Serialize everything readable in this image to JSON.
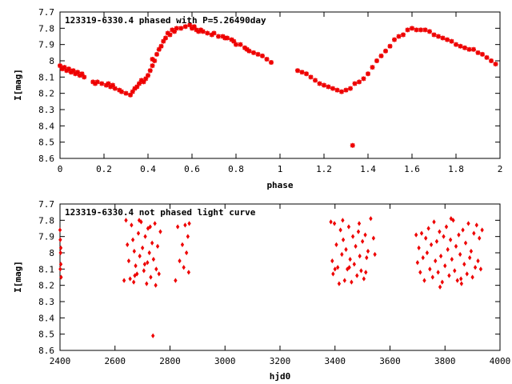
{
  "colors": {
    "points": "#ee0000",
    "axes": "#000000",
    "background": "#ffffff"
  },
  "chart_data": [
    {
      "type": "scatter",
      "title": "123319-6330.4 phased with P=5.26490day",
      "xlabel": "phase",
      "ylabel": "I[mag]",
      "xlim": [
        0,
        2
      ],
      "ylim": [
        7.7,
        8.6
      ],
      "y_inverted": true,
      "grid": false,
      "marker": "star",
      "xticks": [
        "0",
        "0.2",
        "0.4",
        "0.6",
        "0.8",
        "1",
        "1.2",
        "1.4",
        "1.6",
        "1.8",
        "2"
      ],
      "yticks": [
        "7.7",
        "7.8",
        "7.9",
        "8",
        "8.1",
        "8.2",
        "8.3",
        "8.4",
        "8.5",
        "8.6"
      ],
      "points": [
        [
          0.0,
          8.03
        ],
        [
          0.01,
          8.05
        ],
        [
          0.02,
          8.04
        ],
        [
          0.03,
          8.06
        ],
        [
          0.04,
          8.05
        ],
        [
          0.05,
          8.07
        ],
        [
          0.06,
          8.06
        ],
        [
          0.07,
          8.08
        ],
        [
          0.08,
          8.07
        ],
        [
          0.09,
          8.09
        ],
        [
          0.1,
          8.08
        ],
        [
          0.11,
          8.1
        ],
        [
          0.15,
          8.13
        ],
        [
          0.16,
          8.14
        ],
        [
          0.17,
          8.13
        ],
        [
          0.19,
          8.14
        ],
        [
          0.21,
          8.15
        ],
        [
          0.22,
          8.14
        ],
        [
          0.23,
          8.16
        ],
        [
          0.24,
          8.15
        ],
        [
          0.25,
          8.17
        ],
        [
          0.27,
          8.18
        ],
        [
          0.28,
          8.19
        ],
        [
          0.3,
          8.2
        ],
        [
          0.32,
          8.21
        ],
        [
          0.33,
          8.19
        ],
        [
          0.34,
          8.17
        ],
        [
          0.35,
          8.16
        ],
        [
          0.36,
          8.14
        ],
        [
          0.37,
          8.12
        ],
        [
          0.38,
          8.13
        ],
        [
          0.39,
          8.11
        ],
        [
          0.4,
          8.09
        ],
        [
          0.41,
          8.06
        ],
        [
          0.42,
          8.03
        ],
        [
          0.42,
          7.99
        ],
        [
          0.43,
          8.0
        ],
        [
          0.44,
          7.96
        ],
        [
          0.45,
          7.93
        ],
        [
          0.46,
          7.91
        ],
        [
          0.47,
          7.88
        ],
        [
          0.48,
          7.86
        ],
        [
          0.49,
          7.83
        ],
        [
          0.5,
          7.84
        ],
        [
          0.51,
          7.81
        ],
        [
          0.52,
          7.82
        ],
        [
          0.53,
          7.8
        ],
        [
          0.55,
          7.8
        ],
        [
          0.57,
          7.79
        ],
        [
          0.59,
          7.78
        ],
        [
          0.6,
          7.8
        ],
        [
          0.61,
          7.79
        ],
        [
          0.62,
          7.81
        ],
        [
          0.63,
          7.82
        ],
        [
          0.64,
          7.81
        ],
        [
          0.65,
          7.82
        ],
        [
          0.67,
          7.83
        ],
        [
          0.69,
          7.84
        ],
        [
          0.7,
          7.83
        ],
        [
          0.72,
          7.85
        ],
        [
          0.74,
          7.85
        ],
        [
          0.75,
          7.86
        ],
        [
          0.76,
          7.86
        ],
        [
          0.78,
          7.87
        ],
        [
          0.79,
          7.88
        ],
        [
          0.8,
          7.9
        ],
        [
          0.82,
          7.9
        ],
        [
          0.84,
          7.92
        ],
        [
          0.85,
          7.93
        ],
        [
          0.86,
          7.94
        ],
        [
          0.88,
          7.95
        ],
        [
          0.9,
          7.96
        ],
        [
          0.92,
          7.97
        ],
        [
          0.94,
          7.99
        ],
        [
          0.96,
          8.01
        ],
        [
          1.08,
          8.06
        ],
        [
          1.1,
          8.07
        ],
        [
          1.12,
          8.08
        ],
        [
          1.14,
          8.1
        ],
        [
          1.16,
          8.12
        ],
        [
          1.18,
          8.14
        ],
        [
          1.2,
          8.15
        ],
        [
          1.22,
          8.16
        ],
        [
          1.24,
          8.17
        ],
        [
          1.26,
          8.18
        ],
        [
          1.28,
          8.19
        ],
        [
          1.3,
          8.18
        ],
        [
          1.32,
          8.17
        ],
        [
          1.34,
          8.14
        ],
        [
          1.36,
          8.13
        ],
        [
          1.38,
          8.11
        ],
        [
          1.4,
          8.08
        ],
        [
          1.42,
          8.04
        ],
        [
          1.44,
          8.0
        ],
        [
          1.46,
          7.97
        ],
        [
          1.48,
          7.94
        ],
        [
          1.5,
          7.91
        ],
        [
          1.52,
          7.87
        ],
        [
          1.54,
          7.85
        ],
        [
          1.56,
          7.84
        ],
        [
          1.58,
          7.81
        ],
        [
          1.6,
          7.8
        ],
        [
          1.62,
          7.81
        ],
        [
          1.64,
          7.81
        ],
        [
          1.66,
          7.81
        ],
        [
          1.68,
          7.82
        ],
        [
          1.7,
          7.84
        ],
        [
          1.72,
          7.85
        ],
        [
          1.74,
          7.86
        ],
        [
          1.76,
          7.87
        ],
        [
          1.78,
          7.88
        ],
        [
          1.8,
          7.9
        ],
        [
          1.82,
          7.91
        ],
        [
          1.84,
          7.92
        ],
        [
          1.86,
          7.93
        ],
        [
          1.88,
          7.93
        ],
        [
          1.9,
          7.95
        ],
        [
          1.92,
          7.96
        ],
        [
          1.94,
          7.98
        ],
        [
          1.96,
          8.0
        ],
        [
          1.98,
          8.02
        ],
        [
          1.33,
          8.52
        ]
      ]
    },
    {
      "type": "scatter",
      "title": "123319-6330.4 not phased light curve",
      "xlabel": "hjd0",
      "ylabel": "I[mag]",
      "xlim": [
        2400,
        4000
      ],
      "ylim": [
        7.7,
        8.6
      ],
      "y_inverted": true,
      "grid": false,
      "marker": "diamond",
      "xticks": [
        "2400",
        "2600",
        "2800",
        "3000",
        "3200",
        "3400",
        "3600",
        "3800",
        "4000"
      ],
      "yticks": [
        "7.7",
        "7.8",
        "7.9",
        "8",
        "8.1",
        "8.2",
        "8.3",
        "8.4",
        "8.5",
        "8.6"
      ],
      "points": [
        [
          2400,
          7.86
        ],
        [
          2401,
          7.92
        ],
        [
          2402,
          8.0
        ],
        [
          2403,
          8.07
        ],
        [
          2404,
          8.15
        ],
        [
          2401,
          8.1
        ],
        [
          2403,
          7.97
        ],
        [
          2633,
          8.17
        ],
        [
          2640,
          7.8
        ],
        [
          2645,
          7.95
        ],
        [
          2650,
          8.05
        ],
        [
          2655,
          8.16
        ],
        [
          2660,
          7.83
        ],
        [
          2665,
          7.92
        ],
        [
          2670,
          7.99
        ],
        [
          2675,
          8.08
        ],
        [
          2680,
          8.13
        ],
        [
          2685,
          7.88
        ],
        [
          2690,
          8.02
        ],
        [
          2695,
          7.81
        ],
        [
          2700,
          7.97
        ],
        [
          2705,
          8.11
        ],
        [
          2710,
          7.9
        ],
        [
          2715,
          8.19
        ],
        [
          2720,
          7.85
        ],
        [
          2725,
          8.0
        ],
        [
          2730,
          8.15
        ],
        [
          2735,
          7.94
        ],
        [
          2740,
          8.04
        ],
        [
          2745,
          7.82
        ],
        [
          2750,
          8.1
        ],
        [
          2755,
          7.96
        ],
        [
          2760,
          8.13
        ],
        [
          2765,
          7.87
        ],
        [
          2668,
          8.18
        ],
        [
          2688,
          7.8
        ],
        [
          2708,
          8.07
        ],
        [
          2728,
          7.84
        ],
        [
          2748,
          8.2
        ],
        [
          2738,
          8.51
        ],
        [
          2672,
          8.14
        ],
        [
          2718,
          8.06
        ],
        [
          2820,
          8.17
        ],
        [
          2828,
          7.84
        ],
        [
          2835,
          8.05
        ],
        [
          2845,
          7.95
        ],
        [
          2850,
          8.09
        ],
        [
          2855,
          7.83
        ],
        [
          2860,
          8.0
        ],
        [
          2865,
          7.9
        ],
        [
          2870,
          7.82
        ],
        [
          2868,
          8.12
        ],
        [
          3385,
          7.81
        ],
        [
          3390,
          8.05
        ],
        [
          3393,
          8.13
        ],
        [
          3398,
          7.82
        ],
        [
          3405,
          7.95
        ],
        [
          3410,
          8.09
        ],
        [
          3415,
          8.19
        ],
        [
          3420,
          7.86
        ],
        [
          3425,
          8.01
        ],
        [
          3430,
          7.92
        ],
        [
          3435,
          8.17
        ],
        [
          3440,
          7.98
        ],
        [
          3445,
          8.1
        ],
        [
          3450,
          7.84
        ],
        [
          3455,
          8.04
        ],
        [
          3460,
          8.18
        ],
        [
          3465,
          7.9
        ],
        [
          3470,
          8.07
        ],
        [
          3475,
          7.96
        ],
        [
          3480,
          8.14
        ],
        [
          3485,
          7.87
        ],
        [
          3490,
          8.02
        ],
        [
          3495,
          8.11
        ],
        [
          3500,
          7.93
        ],
        [
          3505,
          8.16
        ],
        [
          3510,
          7.89
        ],
        [
          3515,
          8.03
        ],
        [
          3520,
          7.99
        ],
        [
          3530,
          7.79
        ],
        [
          3540,
          7.91
        ],
        [
          3545,
          8.01
        ],
        [
          3400,
          8.1
        ],
        [
          3428,
          7.8
        ],
        [
          3452,
          8.09
        ],
        [
          3488,
          7.82
        ],
        [
          3512,
          8.12
        ],
        [
          3695,
          7.89
        ],
        [
          3700,
          8.06
        ],
        [
          3705,
          7.97
        ],
        [
          3710,
          8.12
        ],
        [
          3715,
          7.88
        ],
        [
          3720,
          8.03
        ],
        [
          3725,
          8.17
        ],
        [
          3730,
          7.91
        ],
        [
          3735,
          8.0
        ],
        [
          3740,
          7.85
        ],
        [
          3745,
          8.1
        ],
        [
          3750,
          7.95
        ],
        [
          3755,
          8.15
        ],
        [
          3760,
          7.81
        ],
        [
          3765,
          8.05
        ],
        [
          3770,
          7.93
        ],
        [
          3775,
          8.12
        ],
        [
          3780,
          7.87
        ],
        [
          3785,
          8.02
        ],
        [
          3790,
          8.18
        ],
        [
          3795,
          7.9
        ],
        [
          3800,
          8.08
        ],
        [
          3805,
          7.84
        ],
        [
          3810,
          7.98
        ],
        [
          3815,
          8.14
        ],
        [
          3820,
          7.92
        ],
        [
          3825,
          8.04
        ],
        [
          3830,
          7.8
        ],
        [
          3835,
          8.11
        ],
        [
          3840,
          7.96
        ],
        [
          3845,
          8.17
        ],
        [
          3850,
          7.89
        ],
        [
          3855,
          8.01
        ],
        [
          3860,
          8.19
        ],
        [
          3865,
          7.86
        ],
        [
          3870,
          8.07
        ],
        [
          3875,
          7.94
        ],
        [
          3880,
          8.13
        ],
        [
          3885,
          7.82
        ],
        [
          3890,
          8.03
        ],
        [
          3895,
          7.99
        ],
        [
          3900,
          8.15
        ],
        [
          3905,
          7.88
        ],
        [
          3910,
          8.09
        ],
        [
          3915,
          7.83
        ],
        [
          3920,
          8.05
        ],
        [
          3925,
          7.91
        ],
        [
          3930,
          8.1
        ],
        [
          3935,
          7.86
        ],
        [
          3782,
          8.21
        ],
        [
          3822,
          7.79
        ],
        [
          3858,
          8.16
        ]
      ]
    }
  ]
}
